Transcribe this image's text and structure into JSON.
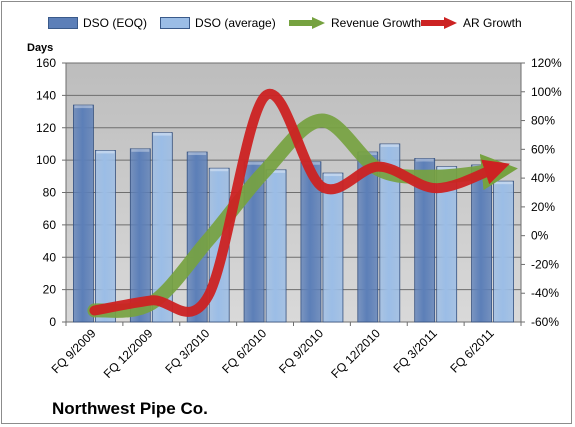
{
  "chart_data": {
    "type": "bar",
    "title": "",
    "footer_label": "Northwest Pipe Co.",
    "categories": [
      "FQ 9/2009",
      "FQ 12/2009",
      "FQ 3/2010",
      "FQ 6/2010",
      "FQ 9/2010",
      "FQ 12/2010",
      "FQ 3/2011",
      "FQ 6/2011"
    ],
    "ylabel_left": "Days",
    "ylim_left": [
      0,
      160
    ],
    "yticks_left": [
      "0",
      "20",
      "40",
      "60",
      "80",
      "100",
      "120",
      "140",
      "160"
    ],
    "ylim_right": [
      -60,
      120
    ],
    "yticks_right": [
      "-60%",
      "-40%",
      "-20%",
      "0%",
      "20%",
      "40%",
      "60%",
      "80%",
      "100%",
      "120%"
    ],
    "grid": true,
    "legend_position": "top",
    "series": [
      {
        "name": "DSO (EOQ)",
        "kind": "bar",
        "axis": "left",
        "color": "#5c7fb8",
        "values": [
          134,
          107,
          105,
          99,
          99,
          105,
          101,
          97
        ]
      },
      {
        "name": "DSO (average)",
        "kind": "bar",
        "axis": "left",
        "color": "#9bbde6",
        "values": [
          106,
          117,
          95,
          94,
          92,
          110,
          96,
          87
        ]
      },
      {
        "name": "Revenue Growth",
        "kind": "line",
        "axis": "right",
        "color": "#76a240",
        "values": [
          -52,
          -47,
          -3,
          45,
          80,
          46,
          41,
          45
        ]
      },
      {
        "name": "AR Growth",
        "kind": "line",
        "axis": "right",
        "color": "#cc2222",
        "values": [
          -52,
          -45,
          -42,
          97,
          34,
          48,
          33,
          46
        ]
      }
    ]
  }
}
